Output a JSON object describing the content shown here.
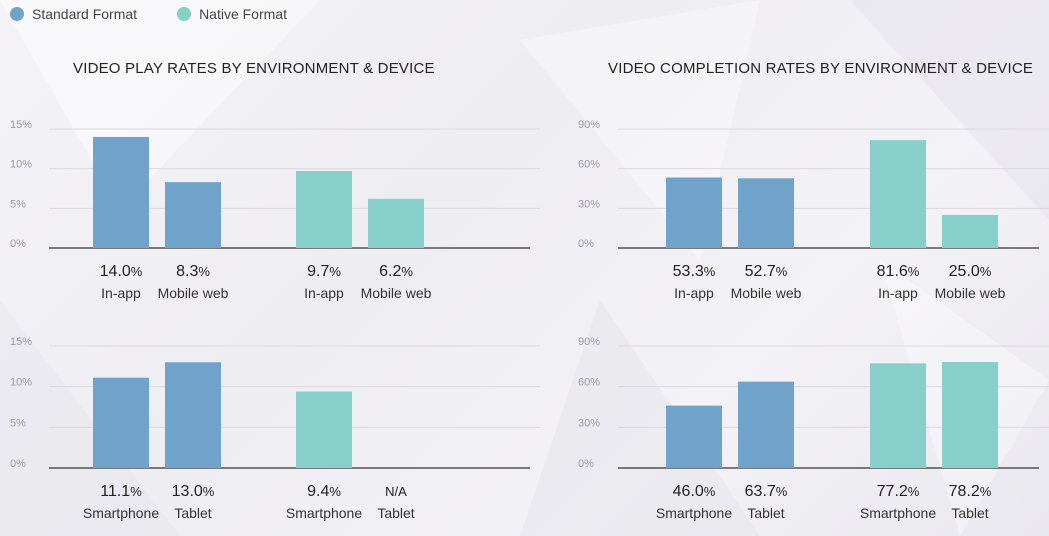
{
  "legend": {
    "standard": {
      "label": "Standard Format",
      "color": "#6fa3c9"
    },
    "native": {
      "label": "Native Format",
      "color": "#86cfcb"
    }
  },
  "titles": {
    "left": "VIDEO PLAY RATES BY ENVIRONMENT & DEVICE",
    "right": "VIDEO COMPLETION RATES BY ENVIRONMENT & DEVICE"
  },
  "chart_data": [
    {
      "type": "bar",
      "id": "play-environment",
      "ylim": [
        0,
        15
      ],
      "yticks": [
        "0%",
        "5%",
        "10%",
        "15%"
      ],
      "grid": true,
      "bars": [
        {
          "category": "In-app",
          "series": "Standard Format",
          "value": 14.0,
          "value_text": "14.0",
          "unit": "%"
        },
        {
          "category": "Mobile web",
          "series": "Standard Format",
          "value": 8.3,
          "value_text": "8.3",
          "unit": "%"
        },
        {
          "category": "In-app",
          "series": "Native Format",
          "value": 9.7,
          "value_text": "9.7",
          "unit": "%"
        },
        {
          "category": "Mobile web",
          "series": "Native Format",
          "value": 6.2,
          "value_text": "6.2",
          "unit": "%"
        }
      ]
    },
    {
      "type": "bar",
      "id": "completion-environment",
      "ylim": [
        0,
        90
      ],
      "yticks": [
        "0%",
        "30%",
        "60%",
        "90%"
      ],
      "grid": true,
      "bars": [
        {
          "category": "In-app",
          "series": "Standard Format",
          "value": 53.3,
          "value_text": "53.3",
          "unit": "%"
        },
        {
          "category": "Mobile web",
          "series": "Standard Format",
          "value": 52.7,
          "value_text": "52.7",
          "unit": "%"
        },
        {
          "category": "In-app",
          "series": "Native Format",
          "value": 81.6,
          "value_text": "81.6",
          "unit": "%"
        },
        {
          "category": "Mobile web",
          "series": "Native Format",
          "value": 25.0,
          "value_text": "25.0",
          "unit": "%"
        }
      ]
    },
    {
      "type": "bar",
      "id": "play-device",
      "ylim": [
        0,
        15
      ],
      "yticks": [
        "0%",
        "5%",
        "10%",
        "15%"
      ],
      "grid": true,
      "bars": [
        {
          "category": "Smartphone",
          "series": "Standard Format",
          "value": 11.1,
          "value_text": "11.1",
          "unit": "%"
        },
        {
          "category": "Tablet",
          "series": "Standard Format",
          "value": 13.0,
          "value_text": "13.0",
          "unit": "%"
        },
        {
          "category": "Smartphone",
          "series": "Native Format",
          "value": 9.4,
          "value_text": "9.4",
          "unit": "%"
        },
        {
          "category": "Tablet",
          "series": "Native Format",
          "value": null,
          "value_text": "N/A",
          "unit": ""
        }
      ]
    },
    {
      "type": "bar",
      "id": "completion-device",
      "ylim": [
        0,
        90
      ],
      "yticks": [
        "0%",
        "30%",
        "60%",
        "90%"
      ],
      "grid": true,
      "bars": [
        {
          "category": "Smartphone",
          "series": "Standard Format",
          "value": 46.0,
          "value_text": "46.0",
          "unit": "%"
        },
        {
          "category": "Tablet",
          "series": "Standard Format",
          "value": 63.7,
          "value_text": "63.7",
          "unit": "%"
        },
        {
          "category": "Smartphone",
          "series": "Native Format",
          "value": 77.2,
          "value_text": "77.2",
          "unit": "%"
        },
        {
          "category": "Tablet",
          "series": "Native Format",
          "value": 78.2,
          "value_text": "78.2",
          "unit": "%"
        }
      ]
    }
  ]
}
